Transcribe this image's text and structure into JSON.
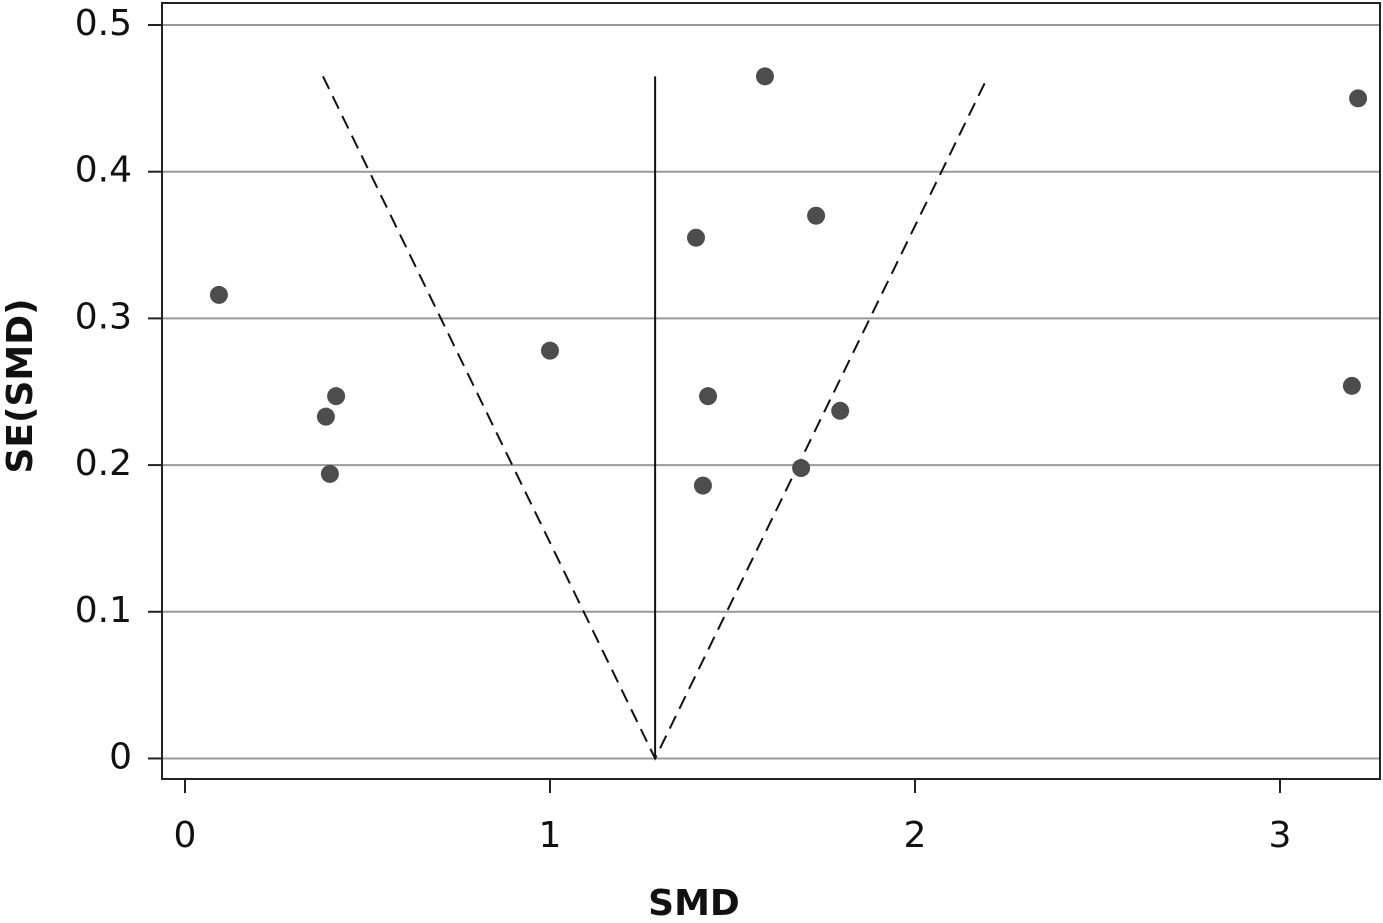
{
  "chart_data": {
    "type": "scatter",
    "x_label": "SMD",
    "y_label": "SE(SMD)",
    "x": [
      0.093,
      0.397,
      0.386,
      0.414,
      1.0,
      1.419,
      1.433,
      1.688,
      1.795,
      1.4,
      1.729,
      1.589,
      3.197,
      3.214
    ],
    "values": [
      0.316,
      0.194,
      0.233,
      0.247,
      0.278,
      0.186,
      0.247,
      0.198,
      0.237,
      0.355,
      0.37,
      0.465,
      0.254,
      0.45
    ],
    "color": "#4d4d4d",
    "funnel_x": [
      0.378,
      1.288,
      2.2
    ],
    "funnel_y": [
      0.465,
      0,
      0.465
    ],
    "center_x": [
      1.288,
      1.288
    ],
    "center_y": [
      0,
      0.465
    ],
    "xlim": [
      -0.063,
      3.274
    ],
    "ylim": [
      0.515,
      -0.014
    ],
    "xticks": [
      0,
      1,
      2,
      3
    ],
    "yticks": [
      0,
      0.1,
      0.2,
      0.3,
      0.4,
      0.5
    ],
    "grid": true
  }
}
